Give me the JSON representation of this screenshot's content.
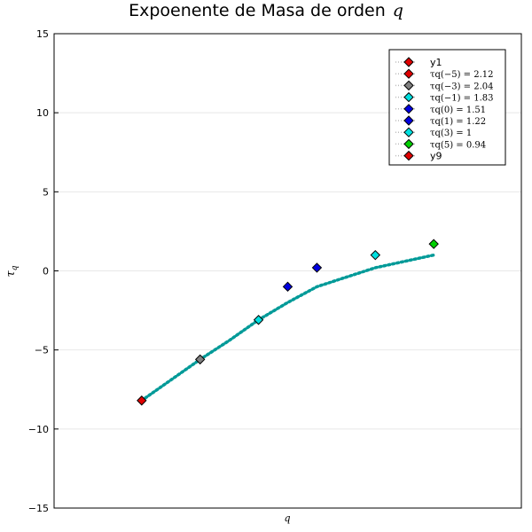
{
  "chart_data": {
    "type": "scatter",
    "title": "Expoenente de Masa de orden",
    "title_math": "q",
    "xlabel": "q",
    "ylabel": "τ",
    "ylabel_sub": "q",
    "ylim": [
      -15,
      15
    ],
    "yticks": [
      15,
      10,
      5,
      0,
      -5,
      -10,
      -15
    ],
    "ytick_labels": [
      "15",
      "10",
      "5",
      "0",
      "−5",
      "−10",
      "−15"
    ],
    "xlim": [
      -8,
      8
    ],
    "grid": true,
    "legend_position": "top-right",
    "line": {
      "name": "y1",
      "color": "#009a98",
      "style": "dotted",
      "x": [
        -5,
        -4,
        -3,
        -2,
        -1,
        0,
        1,
        2,
        3,
        4,
        5
      ],
      "y": [
        -8.2,
        -6.9,
        -5.6,
        -4.4,
        -3.1,
        -2.0,
        -1.0,
        -0.4,
        0.2,
        0.6,
        1.0
      ]
    },
    "series": [
      {
        "name": "y1",
        "color": "#e00000",
        "x": [
          -5
        ],
        "y": [
          -8.2
        ]
      },
      {
        "name": "τq(−5) = 2.12",
        "color": "#808080",
        "x": [
          -3
        ],
        "y": [
          -5.6
        ]
      },
      {
        "name": "τq(−3) = 2.04",
        "color": "#00e0e0",
        "x": [
          -1
        ],
        "y": [
          -3.1
        ]
      },
      {
        "name": "τq(−1) = 1.83",
        "color": "#0000e0",
        "x": [
          0
        ],
        "y": [
          -1.0
        ]
      },
      {
        "name": "τq(0) = 1.51",
        "color": "#0000e0",
        "x": [
          1
        ],
        "y": [
          0.2
        ]
      },
      {
        "name": "τq(1) = 1.22",
        "color": "#00e0e0",
        "x": [
          3
        ],
        "y": [
          1.0
        ]
      },
      {
        "name": "τq(3) = 1",
        "color": "#00d000",
        "x": [
          5
        ],
        "y": [
          1.7
        ]
      },
      {
        "name": "τq(5) = 0.94",
        "color": "#e00000",
        "x": [],
        "y": []
      },
      {
        "name": "y9",
        "color": "#e00000",
        "x": [],
        "y": []
      }
    ],
    "legend": [
      {
        "label": "y1",
        "color": "#e00000",
        "plain": true
      },
      {
        "label": "τq(−5) = 2.12",
        "color": "#e00000",
        "plain": false
      },
      {
        "label": "τq(−3) = 2.04",
        "color": "#808080",
        "plain": false
      },
      {
        "label": "τq(−1) = 1.83",
        "color": "#00e0e0",
        "plain": false
      },
      {
        "label": "τq(0) = 1.51",
        "color": "#0000e0",
        "plain": false
      },
      {
        "label": "τq(1) = 1.22",
        "color": "#0000e0",
        "plain": false
      },
      {
        "label": "τq(3) = 1",
        "color": "#00e0e0",
        "plain": false
      },
      {
        "label": "τq(5) = 0.94",
        "color": "#00d000",
        "plain": false
      },
      {
        "label": "y9",
        "color": "#e00000",
        "plain": true
      }
    ]
  }
}
